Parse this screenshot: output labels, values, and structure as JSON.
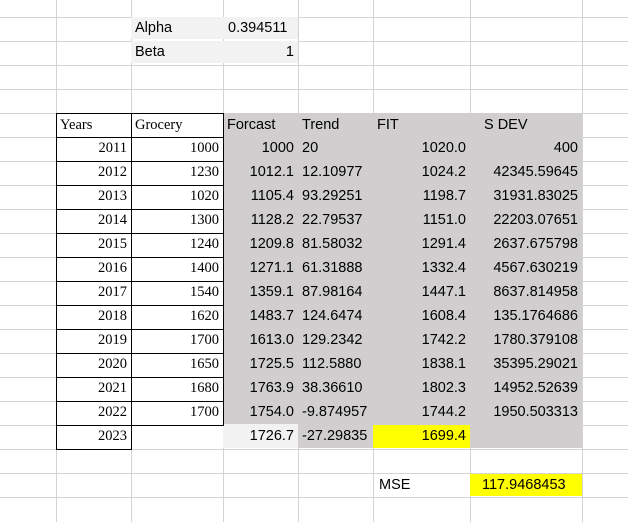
{
  "params": {
    "alpha_label": "Alpha",
    "alpha_value": "0.394511",
    "beta_label": "Beta",
    "beta_value": "1"
  },
  "headers": {
    "years": "Years",
    "grocery": "Grocery",
    "forecast": "Forcast",
    "trend": "Trend",
    "fit": "FIT",
    "sdev": "S DEV"
  },
  "rows": [
    {
      "year": "2011",
      "grocery": "1000",
      "forecast": "1000",
      "trend": "20",
      "fit": "1020.0",
      "sdev": "400"
    },
    {
      "year": "2012",
      "grocery": "1230",
      "forecast": "1012.1",
      "trend": "12.10977",
      "fit": "1024.2",
      "sdev": "42345.59645"
    },
    {
      "year": "2013",
      "grocery": "1020",
      "forecast": "1105.4",
      "trend": "93.29251",
      "fit": "1198.7",
      "sdev": "31931.83025"
    },
    {
      "year": "2014",
      "grocery": "1300",
      "forecast": "1128.2",
      "trend": "22.79537",
      "fit": "1151.0",
      "sdev": "22203.07651"
    },
    {
      "year": "2015",
      "grocery": "1240",
      "forecast": "1209.8",
      "trend": "81.58032",
      "fit": "1291.4",
      "sdev": "2637.675798"
    },
    {
      "year": "2016",
      "grocery": "1400",
      "forecast": "1271.1",
      "trend": "61.31888",
      "fit": "1332.4",
      "sdev": "4567.630219"
    },
    {
      "year": "2017",
      "grocery": "1540",
      "forecast": "1359.1",
      "trend": "87.98164",
      "fit": "1447.1",
      "sdev": "8637.814958"
    },
    {
      "year": "2018",
      "grocery": "1620",
      "forecast": "1483.7",
      "trend": "124.6474",
      "fit": "1608.4",
      "sdev": "135.1764686"
    },
    {
      "year": "2019",
      "grocery": "1700",
      "forecast": "1613.0",
      "trend": "129.2342",
      "fit": "1742.2",
      "sdev": "1780.379108"
    },
    {
      "year": "2020",
      "grocery": "1650",
      "forecast": "1725.5",
      "trend": "112.5880",
      "fit": "1838.1",
      "sdev": "35395.29021"
    },
    {
      "year": "2021",
      "grocery": "1680",
      "forecast": "1763.9",
      "trend": "38.36610",
      "fit": "1802.3",
      "sdev": "14952.52639"
    },
    {
      "year": "2022",
      "grocery": "1700",
      "forecast": "1754.0",
      "trend": "-9.874957",
      "fit": "1744.2",
      "sdev": "1950.503313"
    },
    {
      "year": "2023",
      "grocery": "",
      "forecast": "1726.7",
      "trend": "-27.29835",
      "fit": "1699.4",
      "sdev": ""
    }
  ],
  "mse": {
    "label": "MSE",
    "value": "117.9468453"
  },
  "colors": {
    "shaded": "#d0cece",
    "highlight": "#ffff00",
    "gridline": "#d4d4d4"
  }
}
